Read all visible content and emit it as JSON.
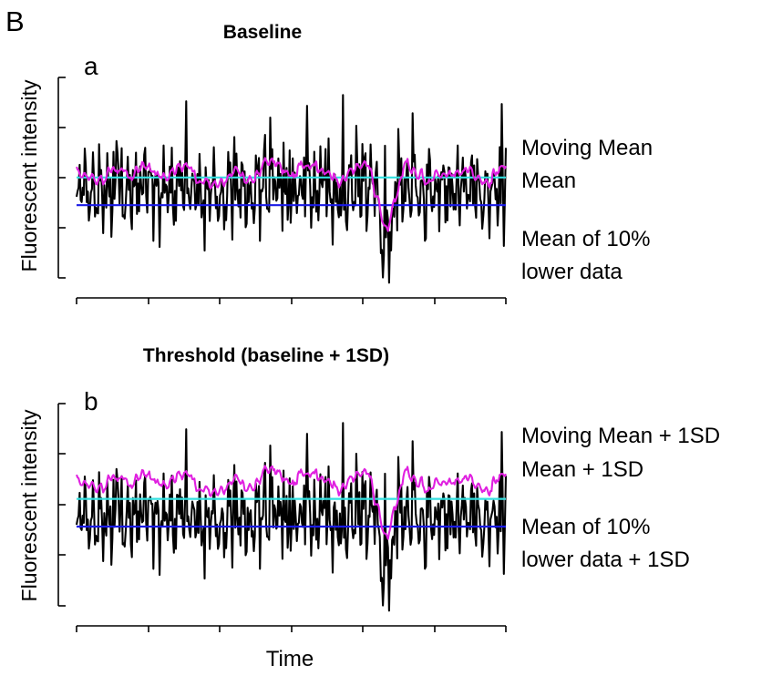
{
  "figure_label": "B",
  "chart_data": [
    {
      "type": "line",
      "panel": "a",
      "title": "Baseline",
      "ylabel": "Fluorescent intensity",
      "xlabel": "",
      "grid": false,
      "legend_placement": "right",
      "series": [
        {
          "name": "Moving Mean",
          "color": "#e020e0",
          "kind": "moving_average"
        },
        {
          "name": "Mean",
          "color": "#33e0e0",
          "kind": "horizontal",
          "level": 0.38
        },
        {
          "name": "Mean of 10% lower data",
          "color": "#1a1ae6",
          "kind": "horizontal",
          "level": -0.38
        }
      ],
      "signal_color": "#000000",
      "legend": [
        "Moving Mean",
        "Mean",
        "Mean of 10%",
        "lower data"
      ]
    },
    {
      "type": "line",
      "panel": "b",
      "title": "Threshold (baseline + 1SD)",
      "ylabel": "Fluorescent intensity",
      "xlabel": "Time",
      "grid": false,
      "legend_placement": "right",
      "series": [
        {
          "name": "Moving Mean + 1SD",
          "color": "#e020e0",
          "kind": "moving_average_plus_sd"
        },
        {
          "name": "Mean + 1SD",
          "color": "#33e0e0",
          "kind": "horizontal",
          "level": 0.56
        },
        {
          "name": "Mean of 10% lower data + 1SD",
          "color": "#1a1ae6",
          "kind": "horizontal",
          "level": -0.2
        }
      ],
      "signal_color": "#000000",
      "legend": [
        "Moving Mean + 1SD",
        "Mean + 1SD",
        "Mean of 10%",
        "lower data + 1SD"
      ]
    }
  ]
}
